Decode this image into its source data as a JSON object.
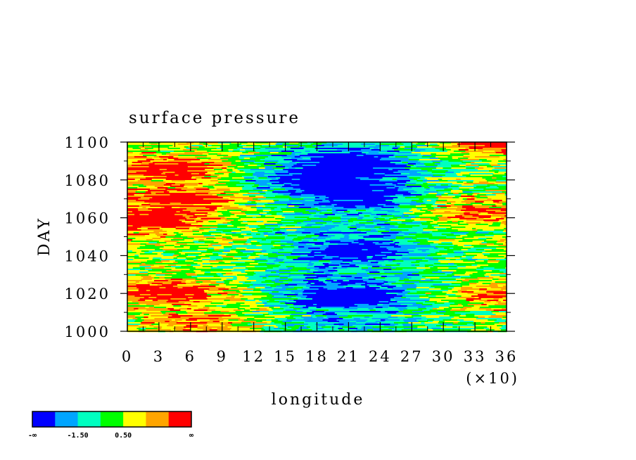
{
  "chart_data": {
    "type": "heatmap",
    "title": "surface pressure",
    "xlabel": "longitude",
    "ylabel": "DAY",
    "x_scale_note": "(×10)",
    "xlim": [
      0,
      36
    ],
    "ylim": [
      1000,
      1100
    ],
    "x_ticks": [
      "0",
      "3",
      "6",
      "9",
      "12",
      "15",
      "18",
      "21",
      "24",
      "27",
      "30",
      "33",
      "36"
    ],
    "y_ticks": [
      "1000",
      "1020",
      "1040",
      "1060",
      "1080",
      "1100"
    ],
    "x_minor_step": 1.5,
    "y_minor_step": 10,
    "colorbar": {
      "colors": [
        "#0000ff",
        "#00a5ff",
        "#00ffc0",
        "#00ff00",
        "#ffff00",
        "#ffa500",
        "#ff0000"
      ],
      "labels": [
        "-∞",
        "-1.50",
        "0.50",
        "∞"
      ]
    },
    "features": [
      {
        "x": 4,
        "y": 1086,
        "level": 6
      },
      {
        "x": 5,
        "y": 1070,
        "level": 6
      },
      {
        "x": 2,
        "y": 1058,
        "level": 6
      },
      {
        "x": 4,
        "y": 1021,
        "level": 6
      },
      {
        "x": 7,
        "y": 1005,
        "level": 5
      },
      {
        "x": 21,
        "y": 1018,
        "level": 0
      },
      {
        "x": 22,
        "y": 1072,
        "level": 0
      },
      {
        "x": 21,
        "y": 1087,
        "level": 0
      },
      {
        "x": 22,
        "y": 1043,
        "level": 1
      },
      {
        "x": 17,
        "y": 1080,
        "level": 1
      },
      {
        "x": 33,
        "y": 1064,
        "level": 5
      },
      {
        "x": 35,
        "y": 1020,
        "level": 5
      },
      {
        "x": 35,
        "y": 1099,
        "level": 6
      }
    ]
  }
}
